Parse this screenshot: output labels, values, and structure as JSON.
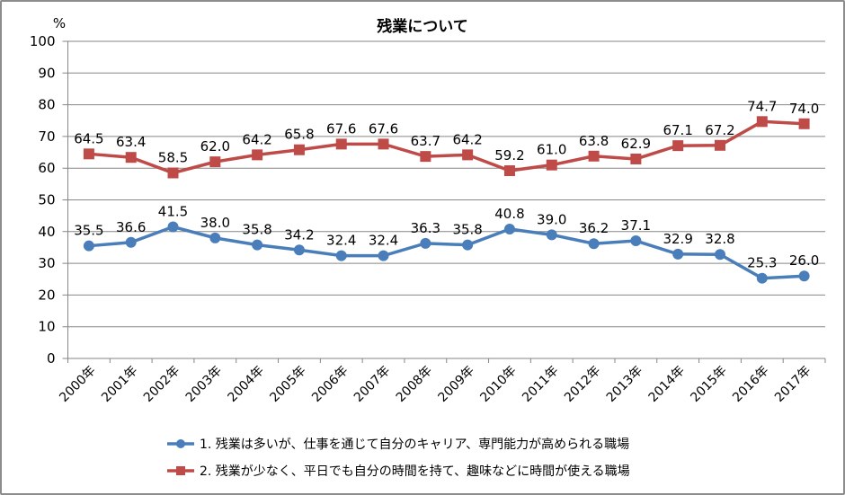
{
  "chart_data": {
    "type": "line",
    "title": "残業について",
    "ylabel": "%",
    "xlabel": "",
    "ylim": [
      0,
      100
    ],
    "yticks": [
      0,
      10,
      20,
      30,
      40,
      50,
      60,
      70,
      80,
      90,
      100
    ],
    "grid": true,
    "legend_position": "bottom",
    "categories": [
      "2000年",
      "2001年",
      "2002年",
      "2003年",
      "2004年",
      "2005年",
      "2006年",
      "2007年",
      "2008年",
      "2009年",
      "2010年",
      "2011年",
      "2012年",
      "2013年",
      "2014年",
      "2015年",
      "2016年",
      "2017年"
    ],
    "series": [
      {
        "name": "1.  残業は多いが、仕事を通じて自分のキャリア、専門能力が高められる職場",
        "color": "#4a7ebb",
        "marker": "circle",
        "values": [
          35.5,
          36.6,
          41.5,
          38.0,
          35.8,
          34.2,
          32.4,
          32.4,
          36.3,
          35.8,
          40.8,
          39.0,
          36.2,
          37.1,
          32.9,
          32.8,
          25.3,
          26.0
        ]
      },
      {
        "name": "2.  残業が少なく、平日でも自分の時間を持て、趣味などに時間が使える職場",
        "color": "#be4b48",
        "marker": "square",
        "values": [
          64.5,
          63.4,
          58.5,
          62.0,
          64.2,
          65.8,
          67.6,
          67.6,
          63.7,
          64.2,
          59.2,
          61.0,
          63.8,
          62.9,
          67.1,
          67.2,
          74.7,
          74.0
        ]
      }
    ]
  }
}
